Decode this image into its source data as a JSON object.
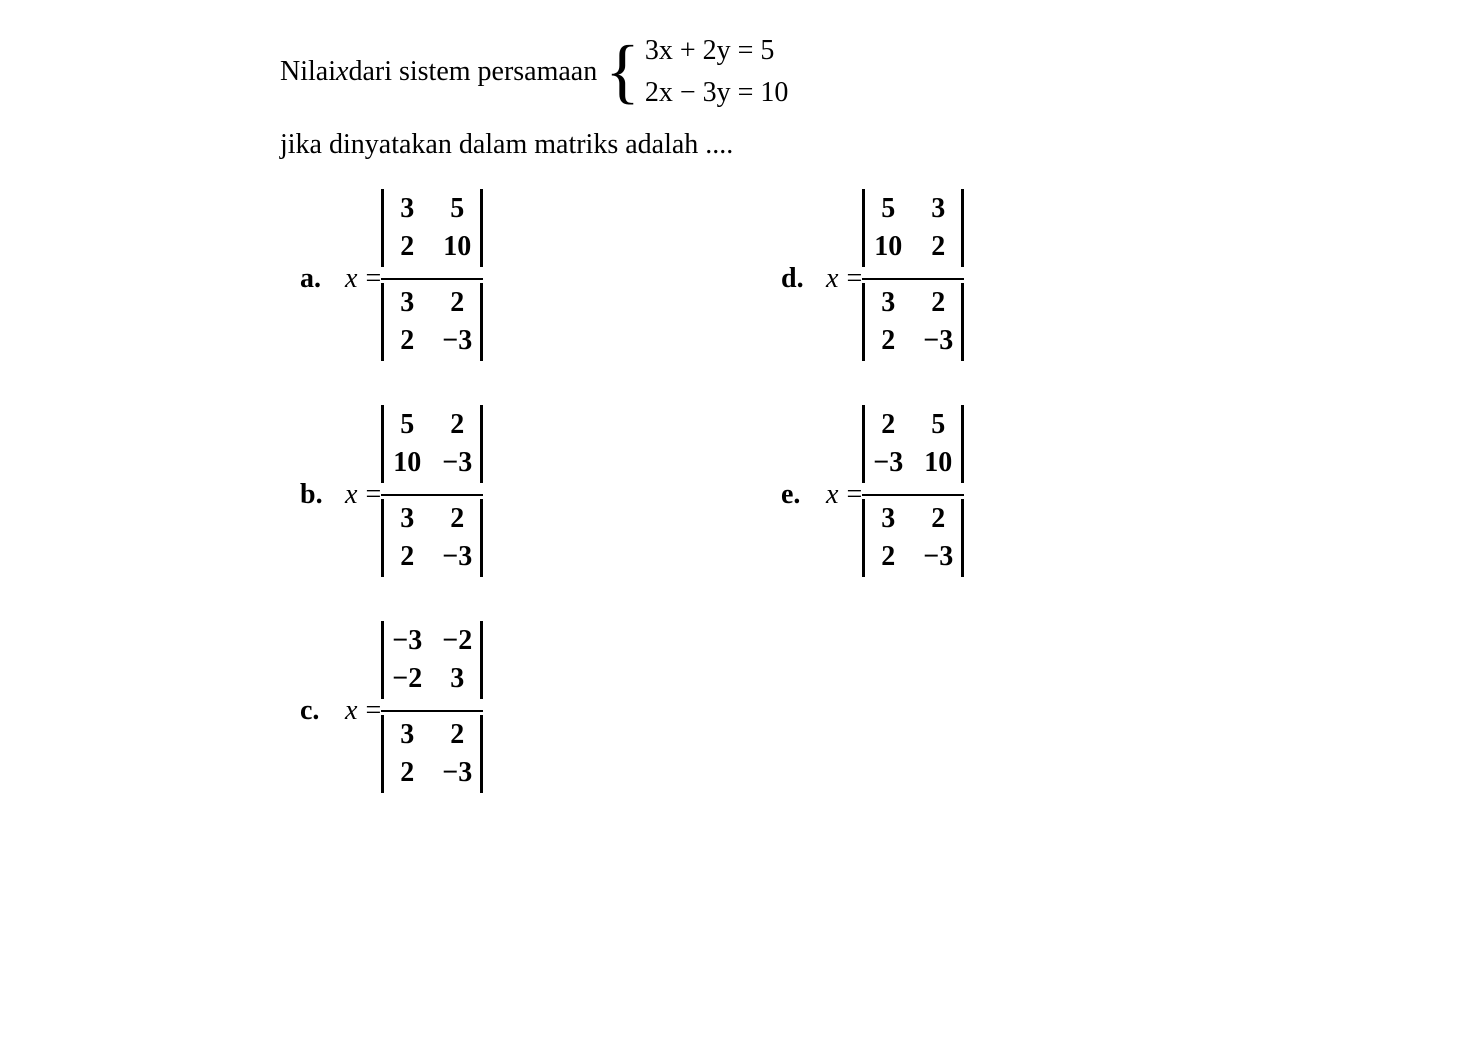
{
  "question": {
    "prefix": "Nilai ",
    "var": "x",
    "middle": " dari sistem persamaan ",
    "eq1": "3x + 2y = 5",
    "eq2": "2x − 3y = 10",
    "followup": "jika dinyatakan dalam matriks adalah ...."
  },
  "var_label": "x",
  "equals": " = ",
  "options": [
    {
      "label": "a.",
      "num": [
        [
          "3",
          "5"
        ],
        [
          "2",
          "10"
        ]
      ],
      "den": [
        [
          "3",
          "2"
        ],
        [
          "2",
          "−3"
        ]
      ]
    },
    {
      "label": "d.",
      "num": [
        [
          "5",
          "3"
        ],
        [
          "10",
          "2"
        ]
      ],
      "den": [
        [
          "3",
          "2"
        ],
        [
          "2",
          "−3"
        ]
      ]
    },
    {
      "label": "b.",
      "num": [
        [
          "5",
          "2"
        ],
        [
          "10",
          "−3"
        ]
      ],
      "den": [
        [
          "3",
          "2"
        ],
        [
          "2",
          "−3"
        ]
      ]
    },
    {
      "label": "e.",
      "num": [
        [
          "2",
          "5"
        ],
        [
          "−3",
          "10"
        ]
      ],
      "den": [
        [
          "3",
          "2"
        ],
        [
          "2",
          "−3"
        ]
      ]
    },
    {
      "label": "c.",
      "num": [
        [
          "−3",
          "−2"
        ],
        [
          "−2",
          "3"
        ]
      ],
      "den": [
        [
          "3",
          "2"
        ],
        [
          "2",
          "−3"
        ]
      ]
    }
  ],
  "colors": {
    "text": "#000000",
    "background": "#ffffff"
  },
  "fontsize": {
    "body": 28,
    "brace": 72
  }
}
